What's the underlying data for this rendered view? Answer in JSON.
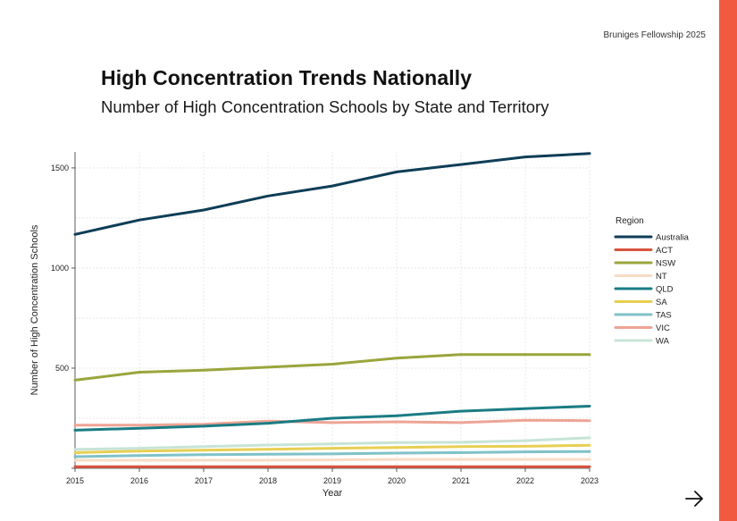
{
  "page": {
    "header_note": "Bruniges Fellowship 2025",
    "title": "High Concentration Trends Nationally",
    "subtitle": "Number of High Concentration Schools by State and Territory",
    "accent_color": "#f15a3e",
    "next_icon": "arrow-right-icon"
  },
  "chart_data": {
    "type": "line",
    "title": "High Concentration Trends Nationally",
    "subtitle": "Number of High Concentration Schools by State and Territory",
    "xlabel": "Year",
    "ylabel": "Number of High Concentration Schools",
    "x": [
      2015,
      2016,
      2017,
      2018,
      2019,
      2020,
      2021,
      2022,
      2023
    ],
    "ylim": [
      0,
      1580
    ],
    "yticks": [
      0,
      500,
      1000,
      1500
    ],
    "yticks_labels": [
      "",
      "500",
      "1000",
      "1500"
    ],
    "grid": true,
    "legend_title": "Region",
    "legend_position": "right",
    "series": [
      {
        "name": "Australia",
        "color": "#0e3d57",
        "values": [
          1168,
          1240,
          1290,
          1360,
          1410,
          1480,
          1517,
          1555,
          1572
        ]
      },
      {
        "name": "ACT",
        "color": "#d9533f",
        "values": [
          8,
          8,
          8,
          8,
          8,
          8,
          8,
          8,
          8
        ]
      },
      {
        "name": "NSW",
        "color": "#9aa53c",
        "values": [
          440,
          480,
          490,
          505,
          520,
          550,
          568,
          568,
          568
        ]
      },
      {
        "name": "NT",
        "color": "#f7dcc4",
        "values": [
          40,
          40,
          40,
          40,
          42,
          44,
          44,
          44,
          44
        ]
      },
      {
        "name": "QLD",
        "color": "#1a7c84",
        "values": [
          190,
          200,
          210,
          225,
          250,
          262,
          285,
          298,
          310
        ]
      },
      {
        "name": "SA",
        "color": "#e8cf52",
        "values": [
          78,
          86,
          90,
          95,
          100,
          104,
          108,
          110,
          115
        ]
      },
      {
        "name": "TAS",
        "color": "#7fc2c8",
        "values": [
          58,
          64,
          68,
          70,
          72,
          76,
          78,
          82,
          84
        ]
      },
      {
        "name": "VIC",
        "color": "#eea496",
        "values": [
          215,
          215,
          220,
          235,
          228,
          232,
          228,
          240,
          238
        ]
      },
      {
        "name": "WA",
        "color": "#c7e4d6",
        "values": [
          94,
          100,
          108,
          116,
          122,
          128,
          130,
          138,
          152
        ]
      }
    ]
  }
}
